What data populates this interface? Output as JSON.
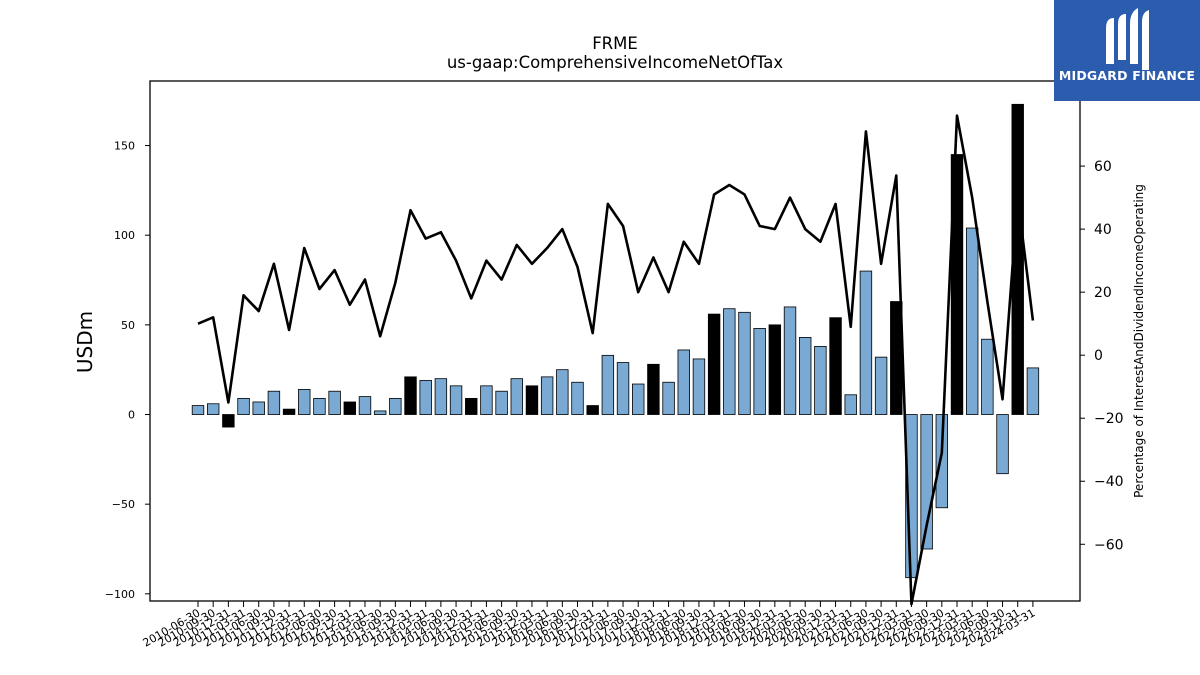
{
  "brand": {
    "name": "MIDGARD FINANCE",
    "bg_color": "#2c5cad",
    "icon": "midgard-logo-icon"
  },
  "chart_data": {
    "type": "bar",
    "title": "FRME",
    "subtitle": "us-gaap:ComprehensiveIncomeNetOfTax",
    "ylabel": "USDm",
    "y2label": "Percentage of InterestAndDividendIncomeOperating",
    "ylim": [
      -104,
      186
    ],
    "y2lim": [
      -78,
      87
    ],
    "yticks": [
      -100,
      -50,
      0,
      50,
      100,
      150
    ],
    "y2ticks": [
      -60,
      -40,
      -20,
      0,
      20,
      40,
      60
    ],
    "colors": {
      "positive": "#7aaad4",
      "negative_change": "#000000",
      "line": "#000000"
    },
    "categories": [
      "2010-06-30",
      "2010-09-30",
      "2010-12-31",
      "2011-03-31",
      "2011-06-30",
      "2011-09-30",
      "2011-12-31",
      "2012-03-31",
      "2012-06-30",
      "2012-09-30",
      "2012-12-31",
      "2013-03-31",
      "2013-06-30",
      "2013-09-30",
      "2013-12-31",
      "2014-03-31",
      "2014-06-30",
      "2014-09-30",
      "2014-12-31",
      "2015-03-31",
      "2015-06-30",
      "2015-09-30",
      "2015-12-31",
      "2016-03-31",
      "2016-06-30",
      "2016-09-30",
      "2016-12-31",
      "2017-03-31",
      "2017-06-30",
      "2017-09-30",
      "2017-12-31",
      "2018-03-31",
      "2018-06-30",
      "2018-09-30",
      "2018-12-31",
      "2019-03-31",
      "2019-06-30",
      "2019-09-30",
      "2019-12-31",
      "2020-03-31",
      "2020-06-30",
      "2020-09-30",
      "2020-12-31",
      "2021-03-31",
      "2021-06-30",
      "2021-09-30",
      "2021-12-31",
      "2022-03-31",
      "2022-06-30",
      "2022-09-30",
      "2022-12-31",
      "2023-03-31",
      "2023-06-30",
      "2023-09-30",
      "2023-12-31",
      "2024-03-31"
    ],
    "xtick_labels": [
      "2010-06-30",
      "2010-09-30",
      "2010-12-31",
      "2011-03-31",
      "2011-06-30",
      "2011-09-30",
      "2011-12-31",
      "2012-03-31",
      "2012-06-30",
      "2012-09-30",
      "2012-12-31",
      "2013-03-31",
      "2013-06-30",
      "2013-09-30",
      "2013-12-31",
      "2014-03-31",
      "2014-06-30",
      "2014-09-30",
      "2014-12-31",
      "2015-03-31",
      "2015-06-30",
      "2015-09-30",
      "2015-12-31",
      "2016-03-31",
      "2016-06-30",
      "2016-09-30",
      "2016-12-31",
      "2017-03-31",
      "2017-06-30",
      "2017-09-30",
      "2017-12-31",
      "2018-03-31",
      "2018-06-30",
      "2018-09-30",
      "2018-12-31",
      "2019-03-31",
      "2019-06-30",
      "2019-09-30",
      "2019-12-31",
      "2020-03-31",
      "2020-06-30",
      "2020-09-30",
      "2020-12-31",
      "2021-03-31",
      "2021-06-30",
      "2021-09-30",
      "2021-12-31",
      "2022-03-31",
      "2022-06-30",
      "2022-09-30",
      "2022-12-31",
      "2023-03-31",
      "2023-06-30",
      "2023-09-30",
      "2023-12-31",
      "2024-03-31"
    ],
    "series": [
      {
        "kind": "bar",
        "values": [
          5,
          6,
          -7,
          9,
          7,
          13,
          3,
          14,
          9,
          13,
          7,
          10,
          2,
          9,
          21,
          19,
          20,
          16,
          9,
          16,
          13,
          20,
          16,
          21,
          25,
          18,
          5,
          33,
          29,
          17,
          28,
          18,
          36,
          31,
          56,
          59,
          57,
          48,
          50,
          60,
          43,
          38,
          54,
          11,
          80,
          32,
          63,
          -91,
          -75,
          -52,
          145,
          104,
          42,
          -33,
          173,
          26
        ],
        "highlight": [
          false,
          false,
          true,
          false,
          false,
          false,
          true,
          false,
          false,
          false,
          true,
          false,
          false,
          false,
          true,
          false,
          false,
          false,
          true,
          false,
          false,
          false,
          true,
          false,
          false,
          false,
          true,
          false,
          false,
          false,
          true,
          false,
          false,
          false,
          true,
          false,
          false,
          false,
          true,
          false,
          false,
          false,
          true,
          false,
          false,
          false,
          true,
          false,
          false,
          false,
          true,
          false,
          false,
          false,
          true,
          false
        ]
      },
      {
        "kind": "line",
        "axis": "right",
        "values": [
          10,
          12,
          -15,
          19,
          14,
          29,
          8,
          34,
          21,
          27,
          16,
          24,
          6,
          23,
          46,
          37,
          39,
          30,
          18,
          30,
          24,
          35,
          29,
          34,
          40,
          28,
          7,
          48,
          41,
          20,
          31,
          20,
          36,
          29,
          51,
          54,
          51,
          41,
          40,
          50,
          40,
          36,
          48,
          9,
          71,
          29,
          57,
          -79,
          -54,
          -31,
          76,
          50,
          17,
          -14,
          50,
          11
        ]
      }
    ]
  }
}
